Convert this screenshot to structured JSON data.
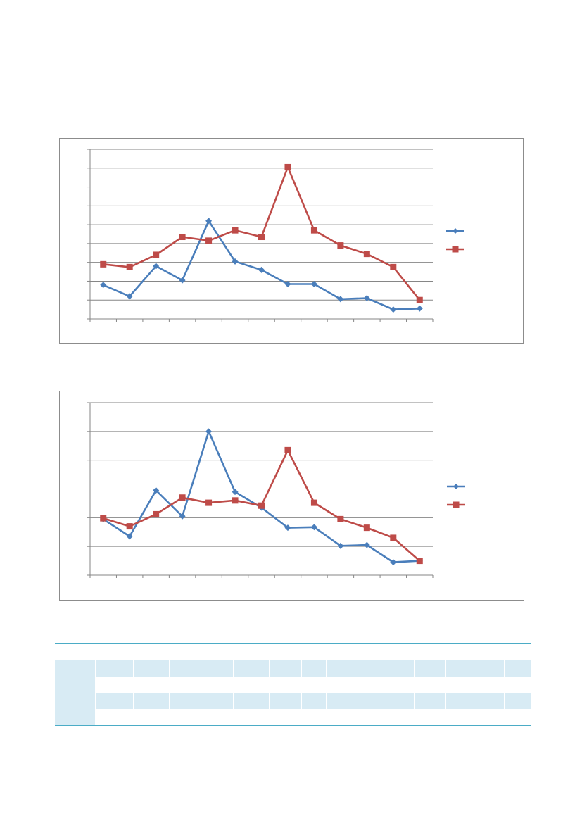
{
  "chart_data": [
    {
      "type": "line",
      "categories": [
        "",
        "",
        "",
        "",
        "",
        "",
        "",
        "",
        "",
        "",
        "",
        "",
        ""
      ],
      "ylim": [
        0,
        9
      ],
      "grid": true,
      "legend": "right",
      "series": [
        {
          "color": "#4a7ebb",
          "marker": "diamond",
          "values": [
            1.8,
            1.2,
            2.8,
            2.05,
            5.2,
            3.05,
            2.6,
            1.85,
            1.85,
            1.05,
            1.1,
            0.5,
            0.55
          ]
        },
        {
          "color": "#be4b48",
          "marker": "square",
          "values": [
            2.9,
            2.75,
            3.4,
            4.35,
            4.15,
            4.7,
            4.35,
            8.05,
            4.7,
            3.9,
            3.45,
            2.75,
            1.0
          ]
        }
      ]
    },
    {
      "type": "line",
      "categories": [
        "",
        "",
        "",
        "",
        "",
        "",
        "",
        "",
        "",
        "",
        "",
        "",
        ""
      ],
      "ylim": [
        0,
        6
      ],
      "grid": true,
      "legend": "right",
      "series": [
        {
          "color": "#4a7ebb",
          "marker": "diamond",
          "values": [
            1.95,
            1.35,
            2.95,
            2.05,
            5.0,
            2.9,
            2.35,
            1.65,
            1.67,
            1.02,
            1.05,
            0.45,
            0.5
          ]
        },
        {
          "color": "#be4b48",
          "marker": "square",
          "values": [
            1.98,
            1.7,
            2.12,
            2.7,
            2.52,
            2.6,
            2.42,
            4.35,
            2.52,
            1.95,
            1.65,
            1.3,
            0.5
          ]
        }
      ]
    }
  ],
  "table": {
    "header_color": "#4bacc6",
    "band_color": "#d8ebf4",
    "columns": 15,
    "rows": [
      {
        "style": "band"
      },
      {
        "style": "plain"
      },
      {
        "style": "band"
      },
      {
        "style": "plain"
      }
    ]
  }
}
